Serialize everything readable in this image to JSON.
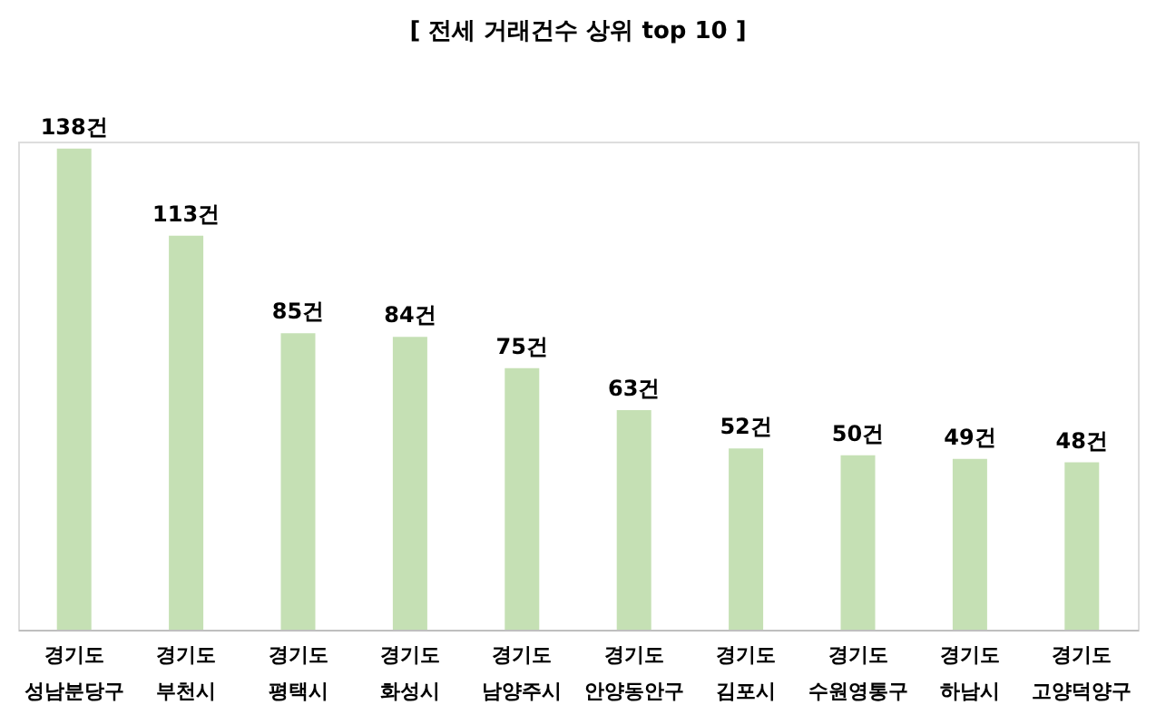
{
  "chart_data": {
    "type": "bar",
    "title": "[ 전세 거래건수 상위 top 10 ]",
    "categories": [
      "경기도\n성남분당구",
      "경기도\n부천시",
      "경기도\n평택시",
      "경기도\n화성시",
      "경기도\n남양주시",
      "경기도\n안양동안구",
      "경기도\n김포시",
      "경기도\n수원영통구",
      "경기도\n하남시",
      "경기도\n고양덕양구"
    ],
    "values": [
      138,
      113,
      85,
      84,
      75,
      63,
      52,
      50,
      49,
      48
    ],
    "value_labels": [
      "138건",
      "113건",
      "85건",
      "84건",
      "75건",
      "63건",
      "52건",
      "50건",
      "49건",
      "48건"
    ],
    "color": "#c5e0b4",
    "grid": false
  }
}
